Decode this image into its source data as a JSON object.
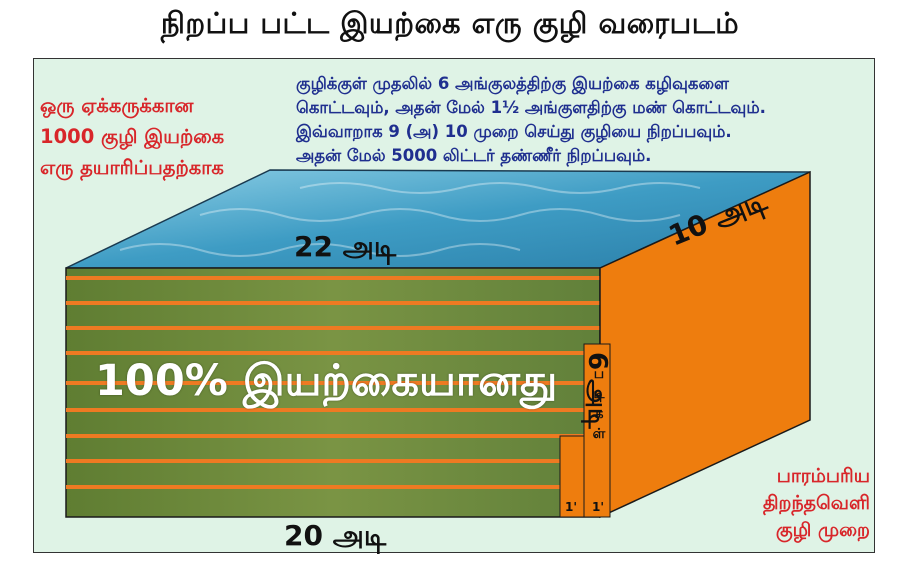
{
  "title": "நிறப்ப பட்ட இயற்கை எரு குழி வரைபடம்",
  "left_note": [
    "ஒரு ஏக்கருக்கான",
    "1000 குழி  இயற்கை",
    "எரு தயாரிப்பதற்காக"
  ],
  "top_note": [
    "குழிக்குள் முதலில் 6 அங்குலத்திற்கு இயற்கை கழிவுகளை",
    "கொட்டவும், அதன் மேல் 1½ அங்குளதிற்கு மண் கொட்டவும்.",
    "இவ்வாறாக 9 (அ) 10 முறை செய்து குழியை நிறப்பவும்.",
    "அதன் மேல் 5000 லிட்டர் தண்ணீர் நிறப்பவும்."
  ],
  "dimensions": {
    "length_top": "22 அடி",
    "length_bottom": "20 அடி",
    "width": "10 அடி",
    "depth": "6 அடி"
  },
  "center_text": "100% இயற்கையானது",
  "steps_label": [
    "ப",
    "டி",
    "க",
    "ள்"
  ],
  "step_width": [
    "1'",
    "1'"
  ],
  "right_note": [
    "பாரம்பரிய",
    "திறந்தவெளி",
    "குழி முறை"
  ],
  "colors": {
    "water": "#3e9cc4",
    "soil": "#6b8a3a",
    "stripe": "#ee7a22",
    "side": "#ee7d0e",
    "panel": "#dff3e6",
    "red_text": "#d8262a",
    "blue_text": "#1f2f8f"
  }
}
